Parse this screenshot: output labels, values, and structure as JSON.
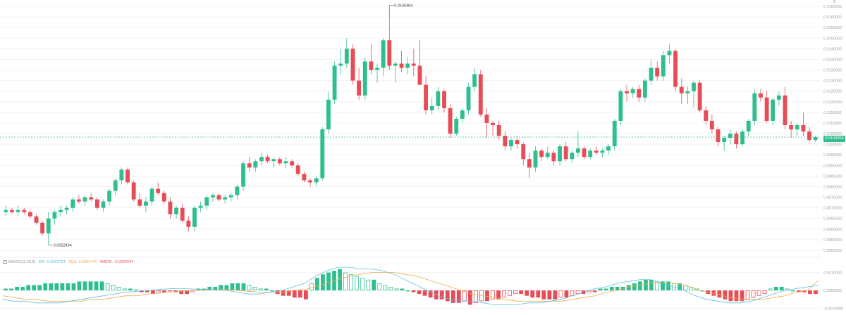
{
  "main_chart": {
    "price_ticks": [
      "0.0165000",
      "0.0160000",
      "0.0155000",
      "0.0150000",
      "0.0145000",
      "0.0140000",
      "0.0135000",
      "0.0130000",
      "0.0125000",
      "0.0120000",
      "0.0115000",
      "0.0110000",
      "0.0105000",
      "0.0100000",
      "0.0095000",
      "0.0090000",
      "0.0085000",
      "0.0080000",
      "0.0075000",
      "0.0070000",
      "0.0065000",
      "0.0060000",
      "0.0055000",
      "0.0050000"
    ],
    "last_price": "0.0103359",
    "high_label": "0.0165464",
    "low_label": "0.0052434"
  },
  "macd_panel": {
    "indicator": "MACD(12,26,9)",
    "dif": "DIF: 0.0002794",
    "dea": "DEA: 0.0005475",
    "macd": "MACD: -0.0002247",
    "ticks": [
      "0.0010000",
      "0.0000000",
      "-0.0010000"
    ]
  },
  "colors": {
    "up": "#2fbf8f",
    "down": "#e84c57",
    "dif": "#5bc0de",
    "dea": "#f0ad4e",
    "grid": "#f2f3f5"
  },
  "icons": {
    "indicator_icon": "indicator-box-icon",
    "corner": "settings-icon"
  },
  "chart_data": {
    "type": "candlestick",
    "price_axis": {
      "min": 0.0049,
      "max": 0.0166
    },
    "macd_axis": {
      "min": -0.0011,
      "max": 0.0013
    },
    "high": {
      "value": 0.0165464,
      "label": "0.0165464"
    },
    "low": {
      "value": 0.0052434,
      "label": "0.0052434"
    },
    "last": 0.0103359,
    "candles": [
      [
        0.0068,
        0.0071,
        0.0066,
        0.0069
      ],
      [
        0.0069,
        0.007,
        0.0067,
        0.0068
      ],
      [
        0.0068,
        0.0071,
        0.0066,
        0.0069
      ],
      [
        0.0069,
        0.007,
        0.0067,
        0.0068
      ],
      [
        0.0068,
        0.0069,
        0.0065,
        0.0066
      ],
      [
        0.0066,
        0.0067,
        0.0062,
        0.0063
      ],
      [
        0.0063,
        0.0064,
        0.0057,
        0.0058
      ],
      [
        0.0058,
        0.0068,
        0.00524,
        0.0065
      ],
      [
        0.0065,
        0.0069,
        0.0062,
        0.0068
      ],
      [
        0.0068,
        0.0071,
        0.0066,
        0.0069
      ],
      [
        0.0069,
        0.0071,
        0.0067,
        0.007
      ],
      [
        0.007,
        0.0075,
        0.0068,
        0.0074
      ],
      [
        0.0074,
        0.0076,
        0.0072,
        0.0073
      ],
      [
        0.0073,
        0.0076,
        0.0071,
        0.0075
      ],
      [
        0.0075,
        0.0077,
        0.0073,
        0.0074
      ],
      [
        0.0074,
        0.0075,
        0.0069,
        0.007
      ],
      [
        0.007,
        0.0074,
        0.0068,
        0.0073
      ],
      [
        0.0073,
        0.0079,
        0.0071,
        0.0078
      ],
      [
        0.0078,
        0.0084,
        0.0076,
        0.0083
      ],
      [
        0.0083,
        0.0089,
        0.0081,
        0.0088
      ],
      [
        0.0088,
        0.0089,
        0.0081,
        0.0082
      ],
      [
        0.0082,
        0.0083,
        0.0073,
        0.0074
      ],
      [
        0.0074,
        0.0077,
        0.007,
        0.0071
      ],
      [
        0.0071,
        0.0075,
        0.0068,
        0.0073
      ],
      [
        0.0073,
        0.008,
        0.0071,
        0.0079
      ],
      [
        0.0079,
        0.0082,
        0.0076,
        0.0077
      ],
      [
        0.0077,
        0.0078,
        0.0072,
        0.0073
      ],
      [
        0.0073,
        0.0075,
        0.0065,
        0.0067
      ],
      [
        0.0067,
        0.0071,
        0.0065,
        0.007
      ],
      [
        0.007,
        0.0072,
        0.0063,
        0.0064
      ],
      [
        0.0064,
        0.0066,
        0.0059,
        0.0061
      ],
      [
        0.0061,
        0.0071,
        0.0059,
        0.007
      ],
      [
        0.007,
        0.0073,
        0.0068,
        0.0071
      ],
      [
        0.0071,
        0.0076,
        0.0069,
        0.0075
      ],
      [
        0.0075,
        0.0077,
        0.0073,
        0.0076
      ],
      [
        0.0076,
        0.0077,
        0.0073,
        0.0074
      ],
      [
        0.0074,
        0.0076,
        0.0072,
        0.0075
      ],
      [
        0.0075,
        0.0077,
        0.0073,
        0.0076
      ],
      [
        0.0076,
        0.0081,
        0.0074,
        0.008
      ],
      [
        0.008,
        0.0092,
        0.0078,
        0.0091
      ],
      [
        0.0091,
        0.0094,
        0.0087,
        0.0089
      ],
      [
        0.0089,
        0.0093,
        0.0087,
        0.0092
      ],
      [
        0.0092,
        0.0096,
        0.009,
        0.0094
      ],
      [
        0.0094,
        0.0095,
        0.0091,
        0.0092
      ],
      [
        0.0092,
        0.0094,
        0.0089,
        0.0093
      ],
      [
        0.0093,
        0.0094,
        0.009,
        0.0091
      ],
      [
        0.0091,
        0.0094,
        0.0089,
        0.0092
      ],
      [
        0.0092,
        0.0093,
        0.0089,
        0.009
      ],
      [
        0.009,
        0.0091,
        0.0085,
        0.0086
      ],
      [
        0.0086,
        0.0087,
        0.0082,
        0.0083
      ],
      [
        0.0083,
        0.0084,
        0.008,
        0.0082
      ],
      [
        0.0082,
        0.0085,
        0.008,
        0.0084
      ],
      [
        0.0084,
        0.0108,
        0.0083,
        0.0107
      ],
      [
        0.0107,
        0.0125,
        0.0105,
        0.0121
      ],
      [
        0.0121,
        0.0139,
        0.0119,
        0.0137
      ],
      [
        0.0137,
        0.0145,
        0.0133,
        0.0138
      ],
      [
        0.0138,
        0.015,
        0.0136,
        0.0145
      ],
      [
        0.0145,
        0.0147,
        0.0128,
        0.013
      ],
      [
        0.013,
        0.0136,
        0.0121,
        0.0123
      ],
      [
        0.0123,
        0.0141,
        0.0121,
        0.0139
      ],
      [
        0.0139,
        0.0147,
        0.0133,
        0.0135
      ],
      [
        0.0135,
        0.0138,
        0.0129,
        0.0136
      ],
      [
        0.0136,
        0.015,
        0.0132,
        0.0149
      ],
      [
        0.0149,
        0.0165464,
        0.0135,
        0.0137
      ],
      [
        0.0137,
        0.0139,
        0.0129,
        0.0138
      ],
      [
        0.0138,
        0.0144,
        0.0134,
        0.0136
      ],
      [
        0.0136,
        0.0141,
        0.0133,
        0.0138
      ],
      [
        0.0138,
        0.0145,
        0.0132,
        0.0137
      ],
      [
        0.0137,
        0.0149,
        0.0128,
        0.0128
      ],
      [
        0.0128,
        0.0132,
        0.0114,
        0.0116
      ],
      [
        0.0116,
        0.0122,
        0.0114,
        0.0118
      ],
      [
        0.0118,
        0.0127,
        0.0116,
        0.0125
      ],
      [
        0.0125,
        0.0126,
        0.0115,
        0.0117
      ],
      [
        0.0117,
        0.0119,
        0.0103,
        0.0105
      ],
      [
        0.0105,
        0.0113,
        0.0104,
        0.0112
      ],
      [
        0.0112,
        0.0117,
        0.011,
        0.0116
      ],
      [
        0.0116,
        0.0129,
        0.0114,
        0.0127
      ],
      [
        0.0127,
        0.0136,
        0.0125,
        0.0133
      ],
      [
        0.0133,
        0.0135,
        0.0113,
        0.0114
      ],
      [
        0.0114,
        0.0117,
        0.0103,
        0.011
      ],
      [
        0.011,
        0.0111,
        0.0104,
        0.0109
      ],
      [
        0.0109,
        0.0111,
        0.0102,
        0.0104
      ],
      [
        0.0104,
        0.0106,
        0.0097,
        0.0099
      ],
      [
        0.0099,
        0.0103,
        0.0097,
        0.0102
      ],
      [
        0.0102,
        0.0104,
        0.0098,
        0.01
      ],
      [
        0.01,
        0.0101,
        0.009,
        0.0093
      ],
      [
        0.0093,
        0.0096,
        0.0084,
        0.0089
      ],
      [
        0.0089,
        0.0099,
        0.0087,
        0.0097
      ],
      [
        0.0097,
        0.0098,
        0.0092,
        0.0094
      ],
      [
        0.0094,
        0.0099,
        0.0093,
        0.0096
      ],
      [
        0.0096,
        0.0097,
        0.009,
        0.0092
      ],
      [
        0.0092,
        0.01,
        0.009,
        0.0099
      ],
      [
        0.0099,
        0.0101,
        0.0092,
        0.0093
      ],
      [
        0.0093,
        0.0097,
        0.0091,
        0.0096
      ],
      [
        0.0096,
        0.0106,
        0.0094,
        0.0098
      ],
      [
        0.0098,
        0.0099,
        0.0093,
        0.0094
      ],
      [
        0.0094,
        0.0098,
        0.0093,
        0.0097
      ],
      [
        0.0097,
        0.0099,
        0.0095,
        0.0096
      ],
      [
        0.0096,
        0.0098,
        0.0094,
        0.0097
      ],
      [
        0.0097,
        0.01,
        0.0095,
        0.0099
      ],
      [
        0.0099,
        0.0112,
        0.0097,
        0.0111
      ],
      [
        0.0111,
        0.0126,
        0.0109,
        0.0125
      ],
      [
        0.0125,
        0.0128,
        0.012,
        0.0124
      ],
      [
        0.0124,
        0.0127,
        0.0122,
        0.0126
      ],
      [
        0.0126,
        0.0128,
        0.012,
        0.0122
      ],
      [
        0.0122,
        0.0131,
        0.012,
        0.013
      ],
      [
        0.013,
        0.014,
        0.0128,
        0.0136
      ],
      [
        0.0136,
        0.0139,
        0.013,
        0.0132
      ],
      [
        0.0132,
        0.0144,
        0.013,
        0.0142
      ],
      [
        0.0142,
        0.0147,
        0.0138,
        0.0144
      ],
      [
        0.0144,
        0.0145,
        0.0125,
        0.0127
      ],
      [
        0.0127,
        0.0131,
        0.0119,
        0.0124
      ],
      [
        0.0124,
        0.0127,
        0.0119,
        0.0125
      ],
      [
        0.0125,
        0.013,
        0.0117,
        0.0129
      ],
      [
        0.0129,
        0.013,
        0.0115,
        0.0116
      ],
      [
        0.0116,
        0.0118,
        0.0109,
        0.0111
      ],
      [
        0.0111,
        0.0114,
        0.0105,
        0.0107
      ],
      [
        0.0107,
        0.0108,
        0.0099,
        0.0101
      ],
      [
        0.0101,
        0.0104,
        0.0097,
        0.0103
      ],
      [
        0.0103,
        0.0107,
        0.01,
        0.0105
      ],
      [
        0.0105,
        0.0106,
        0.0098,
        0.01
      ],
      [
        0.01,
        0.0107,
        0.0099,
        0.0106
      ],
      [
        0.0106,
        0.0112,
        0.0104,
        0.0111
      ],
      [
        0.0111,
        0.0126,
        0.0109,
        0.0124
      ],
      [
        0.0124,
        0.0126,
        0.012,
        0.0122
      ],
      [
        0.0122,
        0.0125,
        0.011,
        0.0111
      ],
      [
        0.0111,
        0.0122,
        0.0109,
        0.0121
      ],
      [
        0.0121,
        0.0125,
        0.0118,
        0.0123
      ],
      [
        0.0123,
        0.0127,
        0.0107,
        0.0109
      ],
      [
        0.0109,
        0.0111,
        0.0103,
        0.0107
      ],
      [
        0.0107,
        0.011,
        0.0104,
        0.0109
      ],
      [
        0.0109,
        0.0115,
        0.0104,
        0.0106
      ],
      [
        0.0106,
        0.0108,
        0.0101,
        0.0102
      ],
      [
        0.0102,
        0.0104,
        0.0101,
        0.0103359
      ]
    ],
    "macd": {
      "dif": [
        -0.0005,
        -0.0006,
        -0.0006,
        -0.0007,
        -0.0007,
        -0.0007,
        -0.0006,
        -0.0005,
        -0.0004,
        -0.0003,
        -0.0002,
        -0.0001,
        -5e-05,
        0.0,
        5e-05,
        0.0001,
        0.0001,
        8e-05,
        5e-05,
        5e-05,
        0.0,
        -0.0001,
        -0.0002,
        -0.0002,
        -0.0001,
        0.0,
        0.0002,
        0.0004,
        0.0008,
        0.0011,
        0.0013,
        0.0013,
        0.0012,
        0.0012,
        0.0011,
        0.0009,
        0.0006,
        0.0003,
        0.0,
        -0.0003,
        -0.0005,
        -0.0006,
        -0.0006,
        -0.0007,
        -0.0008,
        -0.0008,
        -0.0008,
        -0.0007,
        -0.0007,
        -0.0006,
        -0.0005,
        -0.0003,
        -0.0001,
        0.0001,
        0.0002,
        0.0004,
        0.0005,
        0.0006,
        0.0006,
        0.0004,
        0.0002,
        0.0,
        -0.0003,
        -0.0005,
        -0.0006,
        -0.0007,
        -0.0007,
        -0.0006,
        -0.0004,
        -0.0002,
        0.0,
        0.0001,
        0.0002,
        0.00028
      ],
      "dea": [
        -0.0003,
        -0.0004,
        -0.0005,
        -0.0005,
        -0.0006,
        -0.0006,
        -0.0006,
        -0.0006,
        -0.0005,
        -0.0005,
        -0.0004,
        -0.0003,
        -0.0003,
        -0.0002,
        -0.00015,
        -0.0001,
        -5e-05,
        0.0,
        0.0,
        5e-05,
        5e-05,
        0.0,
        -5e-05,
        -0.0001,
        -0.0001,
        -0.0001,
        0.0,
        5e-05,
        0.0002,
        0.0004,
        0.0006,
        0.0008,
        0.0009,
        0.001,
        0.001,
        0.001,
        0.0009,
        0.0008,
        0.0006,
        0.0004,
        0.0002,
        0.0,
        -0.0002,
        -0.0003,
        -0.0004,
        -0.0005,
        -0.0006,
        -0.0006,
        -0.0006,
        -0.0006,
        -0.0006,
        -0.0005,
        -0.0004,
        -0.0003,
        -0.0001,
        0.0,
        0.0002,
        0.0003,
        0.0004,
        0.0004,
        0.0004,
        0.0003,
        0.0001,
        -0.0001,
        -0.0002,
        -0.0004,
        -0.0005,
        -0.0005,
        -0.0005,
        -0.0004,
        -0.0003,
        -0.0001,
        0.0,
        0.00055
      ],
      "hist": [
        0.0001,
        0.0001,
        0.0002,
        0.0002,
        0.0003,
        0.0003,
        0.0003,
        0.0004,
        0.0004,
        0.0004,
        0.0004,
        0.0004,
        0.0004,
        0.0005,
        0.0005,
        0.0005,
        0.0005,
        0.0005,
        0.0004,
        0.0003,
        0.0002,
        0.0001,
        0.0001,
        5e-05,
        -0.0001,
        -0.0001,
        -0.0002,
        -0.0001,
        -0.0001,
        -5e-05,
        -0.0001,
        -0.0002,
        -0.0002,
        -0.0001,
        0.0001,
        0.0001,
        0.0002,
        0.0002,
        0.0003,
        0.0003,
        0.0004,
        0.0004,
        0.0004,
        0.0003,
        0.0002,
        0.0001,
        0.0001,
        0.0,
        -0.0002,
        -0.0003,
        -0.0003,
        -0.0004,
        -0.0004,
        -0.0005,
        0.0004,
        0.0007,
        0.0009,
        0.001,
        0.0011,
        0.0012,
        0.001,
        0.0009,
        0.0008,
        0.0007,
        0.0006,
        0.0006,
        0.0004,
        0.0003,
        0.0002,
        0.0001,
        0.0001,
        0.0,
        -0.0001,
        -0.0002,
        -0.0003,
        -0.0004,
        -0.0005,
        -0.0005,
        -0.0006,
        -0.0007,
        -0.0007,
        -0.0006,
        -0.0008,
        -0.0007,
        -0.0006,
        -0.0006,
        -0.0005,
        -0.0005,
        -0.0004,
        -0.0003,
        -0.0002,
        -0.0002,
        -0.0003,
        -0.0004,
        -0.0004,
        -0.0005,
        -0.0005,
        -0.0005,
        -0.0004,
        -0.0004,
        -0.0003,
        -0.0002,
        -0.0002,
        -0.0001,
        -0.0001,
        0.0001,
        0.0001,
        0.0002,
        0.0002,
        0.0002,
        0.0003,
        0.0004,
        0.0005,
        0.0006,
        0.0006,
        0.0005,
        0.0005,
        0.0005,
        0.0004,
        0.0004,
        0.0003,
        0.0002,
        0.0001,
        0.0,
        -0.0002,
        -0.0003,
        -0.0004,
        -0.0005,
        -0.0006,
        -0.0006,
        -0.0006,
        -0.0005,
        -0.0004,
        -0.0003,
        -0.0002,
        0.0001,
        0.0002,
        0.0002,
        0.0001,
        0.0,
        -0.0001,
        -0.0001,
        -0.0002,
        -0.0002
      ]
    }
  }
}
